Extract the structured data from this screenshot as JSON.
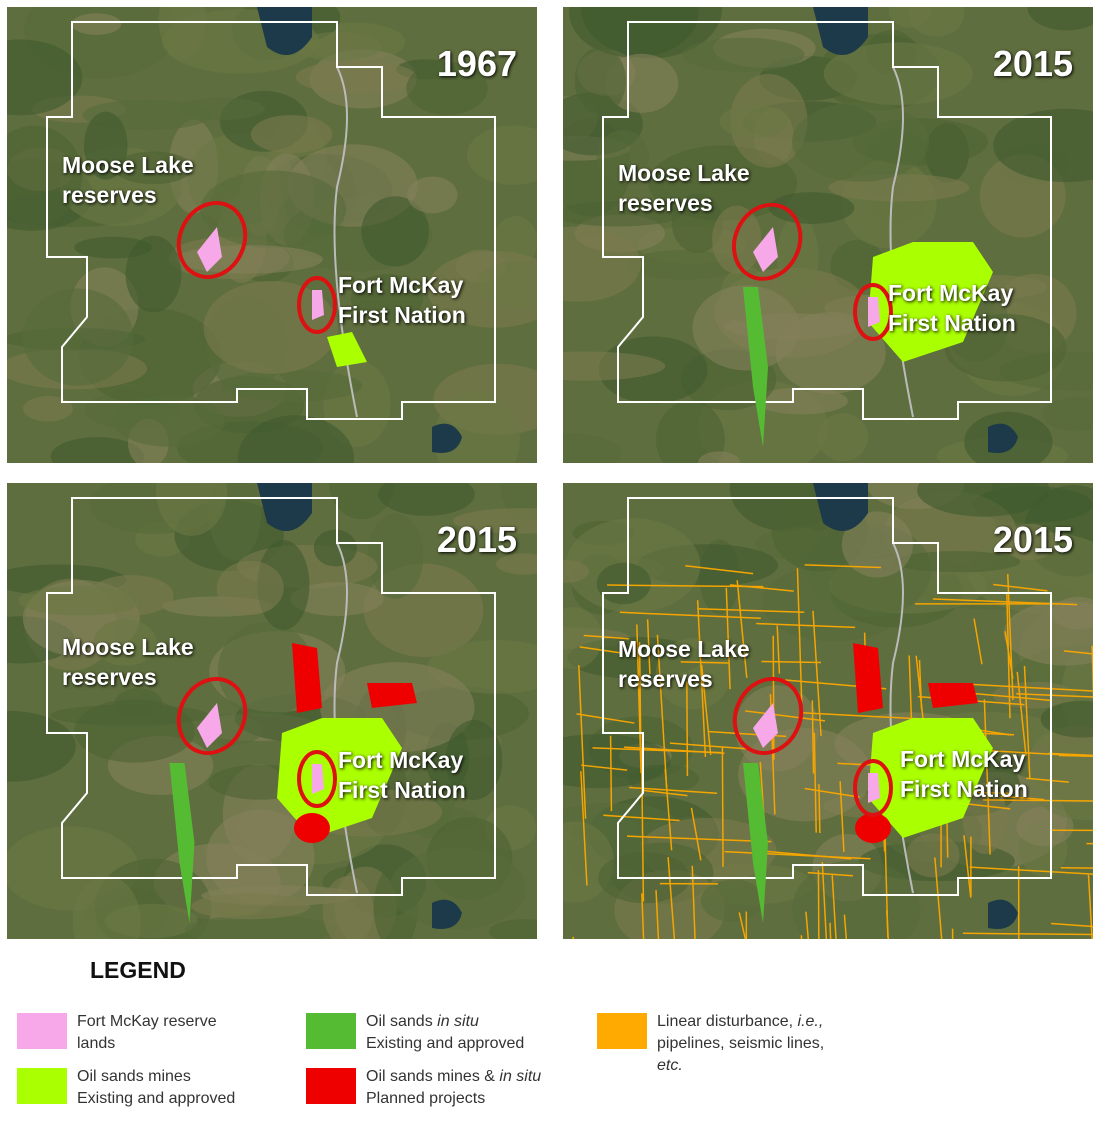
{
  "panels": [
    {
      "year": "1967",
      "labels": [
        [
          "Moose Lake",
          "reserves"
        ],
        [
          "Fort McKay",
          "First Nation"
        ]
      ]
    },
    {
      "year": "2015",
      "labels": [
        [
          "Moose Lake",
          "reserves"
        ],
        [
          "Fort McKay",
          "First Nation"
        ]
      ]
    },
    {
      "year": "2015",
      "labels": [
        [
          "Moose Lake",
          "reserves"
        ],
        [
          "Fort McKay",
          "First Nation"
        ]
      ]
    },
    {
      "year": "2015",
      "labels": [
        [
          "Moose Lake",
          "reserves"
        ],
        [
          "Fort McKay",
          "First Nation"
        ]
      ]
    }
  ],
  "legend": {
    "title": "LEGEND",
    "items": [
      {
        "color": "#f7a8e8",
        "lines": [
          [
            "Fort McKay reserve"
          ],
          [
            "lands"
          ]
        ]
      },
      {
        "color": "#aaff00",
        "lines": [
          [
            "Oil sands mines"
          ],
          [
            "Existing and approved"
          ]
        ]
      },
      {
        "color": "#55bb33",
        "lines": [
          [
            "Oil sands ",
            {
              "text": "in situ",
              "italic": true
            }
          ],
          [
            "Existing and approved"
          ]
        ]
      },
      {
        "color": "#ee0000",
        "lines": [
          [
            "Oil sands mines & ",
            {
              "text": "in situ",
              "italic": true
            }
          ],
          [
            "Planned projects"
          ]
        ]
      },
      {
        "color": "#ffaa00",
        "lines": [
          [
            "Linear disturbance, ",
            {
              "text": "i.e.,",
              "italic": true
            }
          ],
          [
            "pipelines, seismic lines,"
          ],
          [
            {
              "text": "etc.",
              "italic": true
            }
          ]
        ]
      }
    ]
  }
}
